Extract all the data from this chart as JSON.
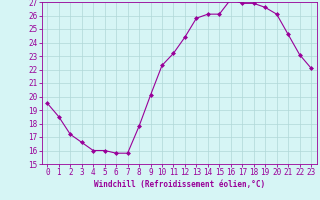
{
  "x": [
    0,
    1,
    2,
    3,
    4,
    5,
    6,
    7,
    8,
    9,
    10,
    11,
    12,
    13,
    14,
    15,
    16,
    17,
    18,
    19,
    20,
    21,
    22,
    23
  ],
  "y": [
    19.5,
    18.5,
    17.2,
    16.6,
    16.0,
    16.0,
    15.8,
    15.8,
    17.8,
    20.1,
    22.3,
    23.2,
    24.4,
    25.8,
    26.1,
    26.1,
    27.2,
    26.9,
    26.9,
    26.6,
    26.1,
    24.6,
    23.1,
    22.1
  ],
  "ylim": [
    15,
    27
  ],
  "yticks": [
    15,
    16,
    17,
    18,
    19,
    20,
    21,
    22,
    23,
    24,
    25,
    26,
    27
  ],
  "xticks": [
    0,
    1,
    2,
    3,
    4,
    5,
    6,
    7,
    8,
    9,
    10,
    11,
    12,
    13,
    14,
    15,
    16,
    17,
    18,
    19,
    20,
    21,
    22,
    23
  ],
  "xlabel": "Windchill (Refroidissement éolien,°C)",
  "line_color": "#990099",
  "marker": "D",
  "marker_size": 2.0,
  "bg_color": "#d6f5f5",
  "grid_color": "#b0d8d8",
  "xlabel_fontsize": 5.5,
  "tick_fontsize": 5.5
}
